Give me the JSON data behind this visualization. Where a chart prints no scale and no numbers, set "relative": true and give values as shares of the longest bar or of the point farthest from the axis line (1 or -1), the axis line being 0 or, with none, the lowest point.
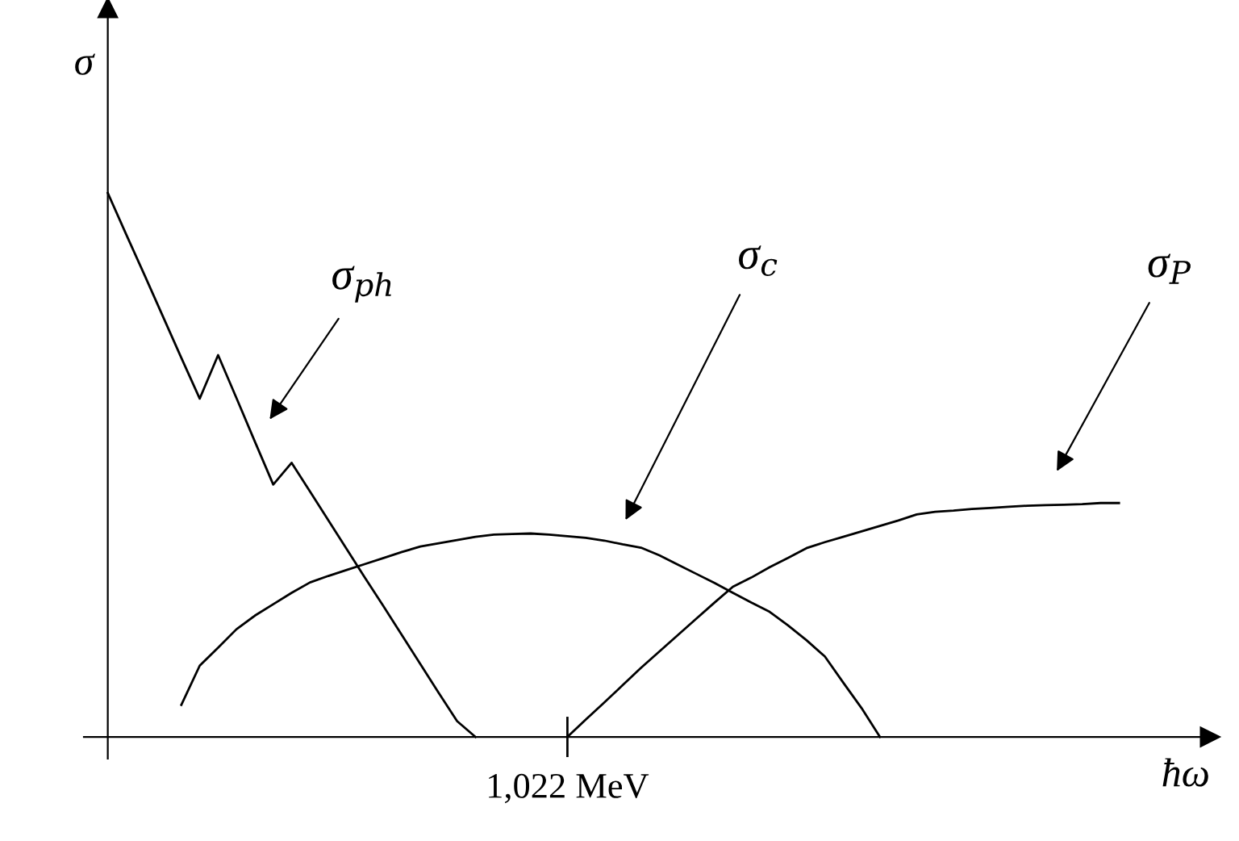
{
  "chart_data": {
    "type": "line",
    "relative": true,
    "xlabel": "ħω",
    "ylabel": "σ",
    "marker": "none",
    "line_style": "solid",
    "categories": [
      null,
      null,
      null,
      null,
      null,
      null,
      null,
      null,
      null,
      null,
      null,
      null,
      null,
      null,
      null,
      null,
      null,
      null,
      null,
      null,
      null,
      null,
      null,
      null,
      null,
      null,
      null,
      null,
      null,
      null,
      null,
      null,
      null,
      null,
      null,
      null,
      null,
      null,
      null,
      null,
      null,
      null,
      null,
      null,
      null,
      null,
      null,
      null,
      null,
      null,
      null,
      null,
      null,
      null,
      null,
      null
    ],
    "series": [
      {
        "color": "#000000",
        "values": [
          1.0,
          0.924,
          0.849,
          0.773,
          0.697,
          0.622,
          0.702,
          0.623,
          0.543,
          0.464,
          0.504,
          0.451,
          0.398,
          0.345,
          0.292,
          0.24,
          0.187,
          0.134,
          0.081,
          0.029,
          0,
          null,
          null,
          null,
          null,
          null,
          null,
          null,
          null,
          null,
          null,
          null,
          null,
          null,
          null,
          null,
          null,
          null,
          null,
          null,
          null,
          null,
          null,
          null,
          null,
          null,
          null,
          null,
          null,
          null,
          null,
          null,
          null,
          null,
          null,
          null
        ]
      },
      {
        "color": "#000000",
        "values": [
          null,
          null,
          null,
          null,
          0.059,
          0.131,
          0.164,
          0.198,
          0.223,
          0.244,
          0.265,
          0.284,
          0.296,
          0.307,
          0.318,
          0.329,
          0.34,
          0.35,
          0.356,
          0.362,
          0.368,
          0.372,
          0.373,
          0.374,
          0.372,
          0.369,
          0.366,
          0.361,
          0.354,
          0.348,
          0.334,
          0.317,
          0.3,
          0.283,
          0.265,
          0.247,
          0.23,
          0.205,
          0.178,
          0.148,
          0.1,
          0.053,
          0,
          null,
          null,
          null,
          null,
          null,
          null,
          null,
          null,
          null,
          null,
          null,
          null,
          null
        ]
      },
      {
        "color": "#000000",
        "values": [
          null,
          null,
          null,
          null,
          null,
          null,
          null,
          null,
          null,
          null,
          null,
          null,
          null,
          null,
          null,
          null,
          null,
          null,
          null,
          null,
          null,
          null,
          null,
          null,
          null,
          0,
          0.032,
          0.063,
          0.095,
          0.127,
          0.157,
          0.187,
          0.217,
          0.247,
          0.276,
          0.293,
          0.312,
          0.329,
          0.347,
          0.358,
          0.368,
          0.378,
          0.388,
          0.398,
          0.409,
          0.414,
          0.416,
          0.419,
          0.421,
          0.423,
          0.425,
          0.426,
          0.427,
          0.428,
          0.43,
          0.43
        ]
      }
    ],
    "annotations": [
      "σ$_{ph}$",
      "σ$_{c}$",
      "σ$_{P}$",
      "1,022 MeV"
    ]
  }
}
